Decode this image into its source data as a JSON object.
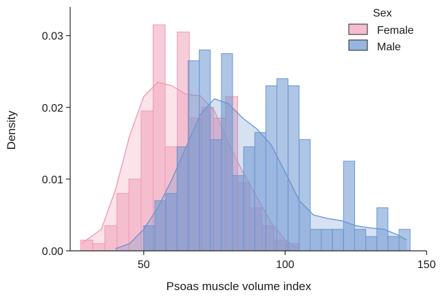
{
  "chart_data": {
    "type": "histogram",
    "title": "",
    "xlabel": "Psoas muscle volume index",
    "ylabel": "Density",
    "xlim": [
      24,
      150
    ],
    "ylim": [
      0,
      0.034
    ],
    "x_ticks": [
      50,
      100,
      150
    ],
    "y_ticks": [
      0.0,
      0.01,
      0.02,
      0.03
    ],
    "x_tick_labels": [
      "50",
      "100",
      "150"
    ],
    "y_tick_labels": [
      "0.00",
      "0.01",
      "0.02",
      "0.03"
    ],
    "grid": false,
    "legend": {
      "title": "Sex",
      "placement": "top-right"
    },
    "series": [
      {
        "name": "Female",
        "color": "#ef9ab4",
        "bin_edges": [
          27.7,
          31.97,
          36.24,
          40.51,
          44.78,
          49.05,
          53.32,
          57.59,
          61.86,
          66.13,
          70.4,
          74.67,
          78.94,
          83.21,
          87.49,
          91.76,
          96.03,
          100.3,
          104.57
        ],
        "density": [
          0.0015,
          0.001,
          0.0035,
          0.008,
          0.01,
          0.0195,
          0.0315,
          0.0145,
          0.0305,
          0.0185,
          0.02,
          0.0185,
          0.0215,
          0.0095,
          0.006,
          0.0035,
          0.0015,
          0.001
        ],
        "kde_x": [
          28,
          35,
          40,
          45,
          50,
          55,
          60,
          65,
          70,
          75,
          80,
          85,
          90,
          95,
          100,
          104
        ],
        "kde_y": [
          0.001,
          0.003,
          0.0085,
          0.016,
          0.0215,
          0.0235,
          0.023,
          0.0218,
          0.0216,
          0.0195,
          0.015,
          0.011,
          0.0075,
          0.004,
          0.0015,
          0.0005
        ]
      },
      {
        "name": "Male",
        "color": "#6b95d0",
        "bin_edges": [
          50.0,
          53.93,
          57.85,
          61.78,
          65.7,
          69.63,
          73.55,
          77.48,
          81.4,
          85.33,
          89.25,
          93.18,
          97.1,
          101.03,
          104.95,
          108.88,
          112.8,
          116.73,
          120.65,
          124.58,
          128.5,
          132.43,
          136.35,
          140.28,
          144.2
        ],
        "density": [
          0.0035,
          0.007,
          0.008,
          0.0145,
          0.0265,
          0.028,
          0.0155,
          0.0275,
          0.0105,
          0.0145,
          0.0165,
          0.023,
          0.024,
          0.023,
          0.0155,
          0.003,
          0.003,
          0.003,
          0.0125,
          0.003,
          0.002,
          0.006,
          0.002,
          0.003
        ],
        "kde_x": [
          40,
          45,
          50,
          55,
          60,
          65,
          70,
          75,
          80,
          85,
          90,
          95,
          100,
          105,
          110,
          115,
          120,
          125,
          130,
          135,
          140,
          143
        ],
        "kde_y": [
          0.0003,
          0.001,
          0.003,
          0.006,
          0.01,
          0.0145,
          0.019,
          0.0212,
          0.0205,
          0.0185,
          0.017,
          0.0148,
          0.011,
          0.007,
          0.005,
          0.0045,
          0.0042,
          0.0035,
          0.0032,
          0.003,
          0.0022,
          0.0015
        ]
      }
    ]
  }
}
